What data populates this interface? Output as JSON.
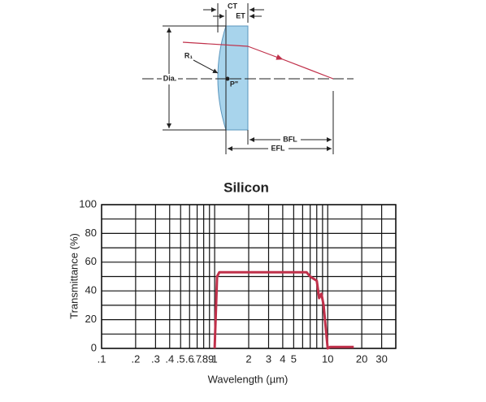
{
  "diagram": {
    "labels": {
      "ct": "CT",
      "et": "ET",
      "r1": "R₁",
      "dia": "Dia.",
      "p": "P\"",
      "bfl": "BFL",
      "efl": "EFL"
    }
  },
  "chart_data": {
    "type": "line",
    "title": "Silicon",
    "x_label": "Wavelength (µm)",
    "y_label": "Transmittance (%)",
    "x": [
      1.0,
      1.05,
      1.1,
      1.3,
      2,
      5,
      6.5,
      7,
      8,
      8.4,
      8.8,
      9.2,
      10,
      10.5,
      17
    ],
    "series": [
      {
        "name": "Silicon",
        "color": "#c0304a",
        "values": [
          0,
          50,
          53,
          53,
          53,
          53,
          53,
          50,
          47,
          35,
          38,
          30,
          0,
          1,
          1
        ]
      }
    ],
    "xlog": true,
    "xlim": [
      0.1,
      40
    ],
    "ylim": [
      0,
      100
    ],
    "xticks": [
      {
        "value": 0.1,
        "label": ".1"
      },
      {
        "value": 0.2,
        "label": ".2"
      },
      {
        "value": 0.3,
        "label": ".3"
      },
      {
        "value": 0.4,
        "label": ".4"
      },
      {
        "value": 0.5,
        "label": ".5"
      },
      {
        "value": 0.6,
        "label": ".6"
      },
      {
        "value": 0.7,
        "label": ".7"
      },
      {
        "value": 0.8,
        "label": ".8"
      },
      {
        "value": 0.9,
        "label": ".9"
      },
      1,
      2,
      3,
      4,
      5,
      10,
      20,
      30
    ],
    "xminor": [
      6,
      7,
      8,
      9,
      40
    ],
    "yticks": [
      0,
      20,
      40,
      60,
      80,
      100
    ],
    "yminor": [
      10,
      30,
      50,
      70,
      90
    ],
    "grid": true
  }
}
